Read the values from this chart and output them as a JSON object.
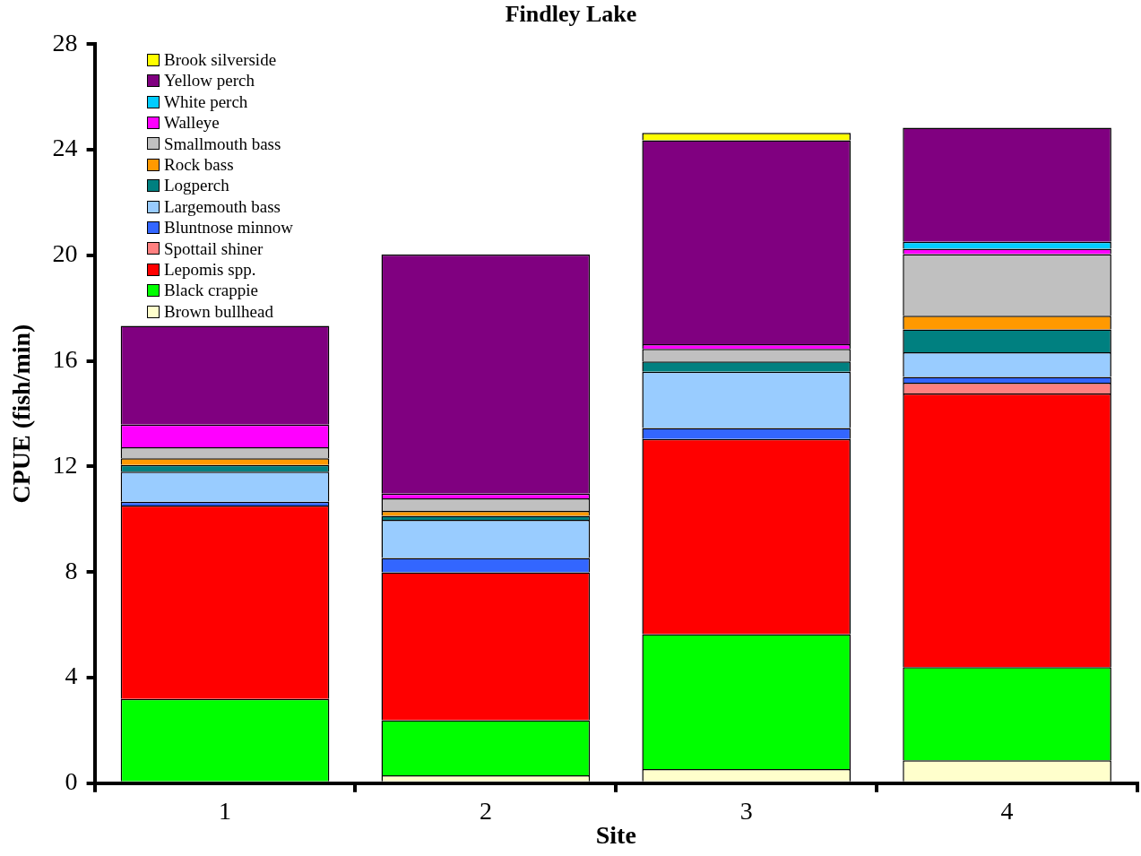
{
  "chart_data": {
    "type": "bar",
    "title": "Findley Lake",
    "xlabel": "Site",
    "ylabel": "CPUE (fish/min)",
    "categories": [
      "1",
      "2",
      "3",
      "4"
    ],
    "stacked": true,
    "legend": "top left",
    "grid": false,
    "ylim": [
      0,
      28
    ],
    "yticks": [
      0,
      4,
      8,
      12,
      16,
      20,
      24,
      28
    ],
    "series": [
      {
        "name": "Brown bullhead",
        "color": "#ffffcc",
        "values": [
          0,
          0.3,
          0.54,
          0.87
        ]
      },
      {
        "name": "Black crappie",
        "color": "#00ff00",
        "values": [
          3.19,
          2.09,
          5.11,
          3.53
        ]
      },
      {
        "name": "Lepomis spp.",
        "color": "#ff0000",
        "values": [
          7.33,
          5.6,
          7.39,
          10.36
        ]
      },
      {
        "name": "Spottail shiner",
        "color": "#ff8080",
        "values": [
          0,
          0,
          0,
          0.41
        ]
      },
      {
        "name": "Bluntnose minnow",
        "color": "#3366ff",
        "values": [
          0.14,
          0.54,
          0.42,
          0.22
        ]
      },
      {
        "name": "Largemouth bass",
        "color": "#99ccff",
        "values": [
          1.14,
          1.45,
          2.13,
          0.94
        ]
      },
      {
        "name": "Logperch",
        "color": "#008080",
        "values": [
          0.26,
          0.15,
          0.39,
          0.86
        ]
      },
      {
        "name": "Rock bass",
        "color": "#ff9900",
        "values": [
          0.25,
          0.19,
          0,
          0.52
        ]
      },
      {
        "name": "Smallmouth bass",
        "color": "#c0c0c0",
        "values": [
          0.42,
          0.47,
          0.47,
          2.33
        ]
      },
      {
        "name": "Walleye",
        "color": "#ff00ff",
        "values": [
          0.85,
          0.18,
          0.18,
          0.21
        ]
      },
      {
        "name": "White perch",
        "color": "#00ccff",
        "values": [
          0,
          0,
          0,
          0.26
        ]
      },
      {
        "name": "Yellow perch",
        "color": "#800080",
        "values": [
          3.75,
          9.06,
          7.73,
          4.32
        ]
      },
      {
        "name": "Brook silverside",
        "color": "#ffff00",
        "values": [
          0,
          0,
          0.28,
          0
        ]
      }
    ]
  }
}
